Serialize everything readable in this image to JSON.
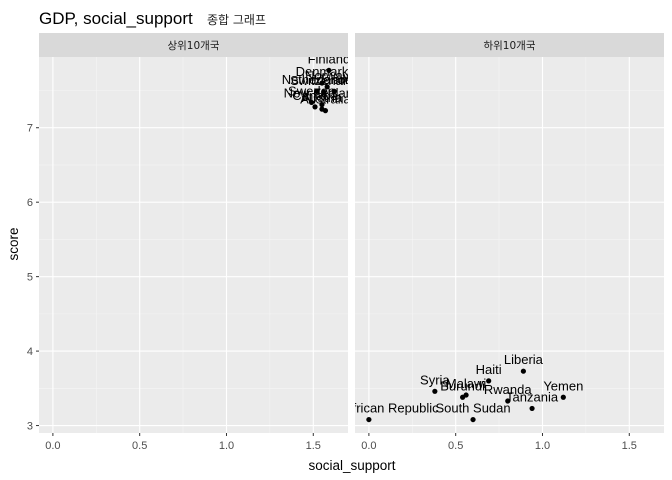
{
  "chart_data": {
    "type": "scatter",
    "title": "GDP, social_support",
    "subtitle": "종합 그래프",
    "xlabel": "social_support",
    "ylabel": "score",
    "xlim": [
      -0.08,
      1.7
    ],
    "ylim": [
      2.9,
      7.95
    ],
    "x_ticks": [
      0.0,
      0.5,
      1.0,
      1.5
    ],
    "x_tick_labels": [
      "0.0",
      "0.5",
      "1.0",
      "1.5"
    ],
    "y_ticks": [
      3,
      4,
      5,
      6,
      7
    ],
    "y_tick_labels": [
      "3",
      "4",
      "5",
      "6",
      "7"
    ],
    "grid": true,
    "point_color": "#000000",
    "panel_color": "#ebebeb",
    "strip_color": "#d9d9d9",
    "panels": [
      {
        "strip": "상위10개국",
        "points": [
          {
            "label": "Finland",
            "x": 1.59,
            "y": 7.77
          },
          {
            "label": "Denmark",
            "x": 1.55,
            "y": 7.6
          },
          {
            "label": "Norway",
            "x": 1.58,
            "y": 7.55
          },
          {
            "label": "Iceland",
            "x": 1.62,
            "y": 7.49
          },
          {
            "label": "Netherlands",
            "x": 1.52,
            "y": 7.49
          },
          {
            "label": "Switzerland",
            "x": 1.56,
            "y": 7.48
          },
          {
            "label": "Sweden",
            "x": 1.49,
            "y": 7.34
          },
          {
            "label": "New Zealand",
            "x": 1.55,
            "y": 7.31
          },
          {
            "label": "Canada",
            "x": 1.51,
            "y": 7.28
          },
          {
            "label": "Austria",
            "x": 1.55,
            "y": 7.25
          },
          {
            "label": "Australia",
            "x": 1.57,
            "y": 7.23
          }
        ]
      },
      {
        "strip": "하위10개국",
        "points": [
          {
            "label": "Liberia",
            "x": 0.89,
            "y": 3.73
          },
          {
            "label": "Haiti",
            "x": 0.69,
            "y": 3.6
          },
          {
            "label": "Syria",
            "x": 0.38,
            "y": 3.46
          },
          {
            "label": "Malawi",
            "x": 0.56,
            "y": 3.41
          },
          {
            "label": "Burundi",
            "x": 0.54,
            "y": 3.38
          },
          {
            "label": "Rwanda",
            "x": 0.8,
            "y": 3.33
          },
          {
            "label": "Yemen",
            "x": 1.12,
            "y": 3.38
          },
          {
            "label": "Tanzania",
            "x": 0.94,
            "y": 3.23
          },
          {
            "label": "Central African Republic",
            "x": 0.0,
            "y": 3.08
          },
          {
            "label": "South Sudan",
            "x": 0.6,
            "y": 3.08
          }
        ]
      }
    ]
  }
}
